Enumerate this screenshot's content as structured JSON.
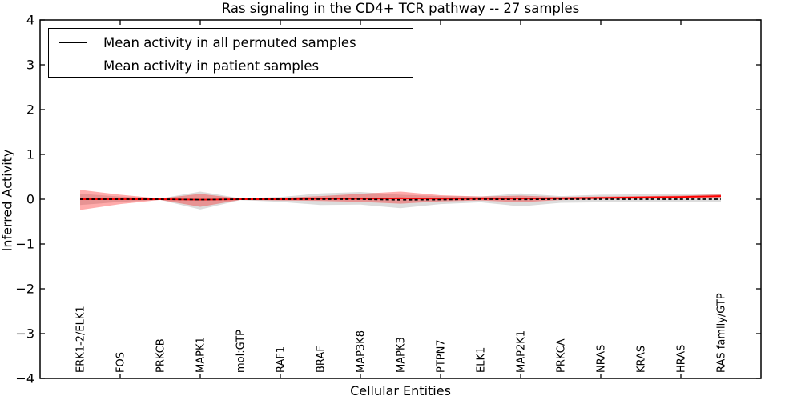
{
  "chart_data": {
    "type": "line",
    "title": "Ras signaling in the CD4+ TCR pathway -- 27 samples",
    "xlabel": "Cellular Entities",
    "ylabel": "Inferred Activity",
    "ylim": [
      -4,
      4
    ],
    "ytick_labels": [
      "4",
      "3",
      "2",
      "1",
      "0",
      "−1",
      "−2",
      "−3",
      "−4"
    ],
    "ytick_values": [
      4,
      3,
      2,
      1,
      0,
      -1,
      -2,
      -3,
      -4
    ],
    "xtick_marks_at_indices": [
      1,
      3,
      5,
      7,
      9,
      11,
      13,
      15
    ],
    "grid": false,
    "legend_position": "upper left",
    "categories": [
      "ERK1-2/ELK1",
      "FOS",
      "PRKCB",
      "MAPK1",
      "mol:GTP",
      "RAF1",
      "BRAF",
      "MAP3K8",
      "MAPK3",
      "PTPN7",
      "ELK1",
      "MAP2K1",
      "PRKCA",
      "NRAS",
      "KRAS",
      "HRAS",
      "RAS family/GTP"
    ],
    "series": [
      {
        "name": "Mean activity in all permuted samples",
        "color": "#000000",
        "dashed": true,
        "values": [
          0,
          0,
          0,
          -0.01,
          0,
          0,
          0,
          0,
          -0.015,
          -0.01,
          0,
          -0.005,
          0,
          0,
          0,
          0,
          0
        ]
      },
      {
        "name": "Mean activity in patient samples",
        "color": "#ff0000",
        "dashed": false,
        "values": [
          0,
          0,
          0,
          -0.01,
          0,
          0,
          0.01,
          0.01,
          0.02,
          0.01,
          0.01,
          0.015,
          0.02,
          0.03,
          0.04,
          0.05,
          0.07
        ]
      }
    ],
    "bands": [
      {
        "name": "permuted-samples-std-band",
        "color": "#808080",
        "opacity": 0.28,
        "upper": [
          0.12,
          0.06,
          0.015,
          0.17,
          0.02,
          0.05,
          0.13,
          0.16,
          0.1,
          0.07,
          0.06,
          0.13,
          0.07,
          0.1,
          0.11,
          0.11,
          0.12
        ],
        "lower": [
          -0.13,
          -0.06,
          -0.015,
          -0.23,
          -0.02,
          -0.06,
          -0.13,
          -0.12,
          -0.2,
          -0.11,
          -0.07,
          -0.16,
          -0.08,
          -0.07,
          -0.07,
          -0.06,
          -0.07
        ]
      },
      {
        "name": "patient-samples-std-band",
        "color": "#ff0000",
        "opacity": 0.33,
        "upper": [
          0.21,
          0.1,
          0.015,
          0.12,
          0.015,
          0.03,
          0.07,
          0.12,
          0.17,
          0.09,
          0.06,
          0.08,
          0.05,
          0.06,
          0.07,
          0.08,
          0.11
        ],
        "lower": [
          -0.24,
          -0.11,
          -0.015,
          -0.17,
          -0.015,
          -0.03,
          -0.04,
          -0.06,
          -0.1,
          -0.05,
          -0.03,
          -0.07,
          -0.02,
          0.0,
          0.01,
          0.02,
          0.03
        ]
      }
    ]
  }
}
